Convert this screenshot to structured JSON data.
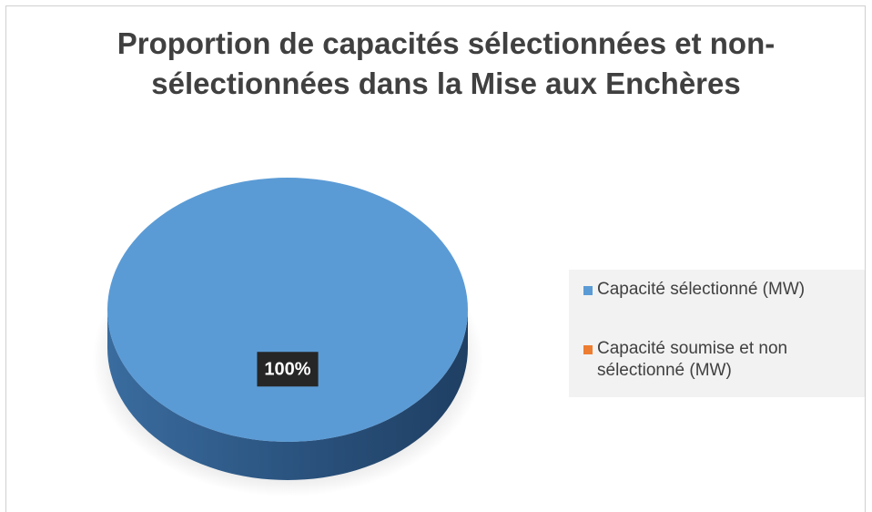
{
  "chart_data": {
    "type": "pie",
    "title": "Proportion de capacités sélectionnées et non-sélectionnées dans la Mise aux Enchères",
    "categories": [
      "Capacité sélectionné (MW)",
      "Capacité soumise et non sélectionné (MW)"
    ],
    "values": [
      100,
      0
    ],
    "value_labels": [
      "100%",
      null
    ],
    "colors": [
      "#5b9bd5",
      "#ed7d31"
    ],
    "legend": "right"
  }
}
